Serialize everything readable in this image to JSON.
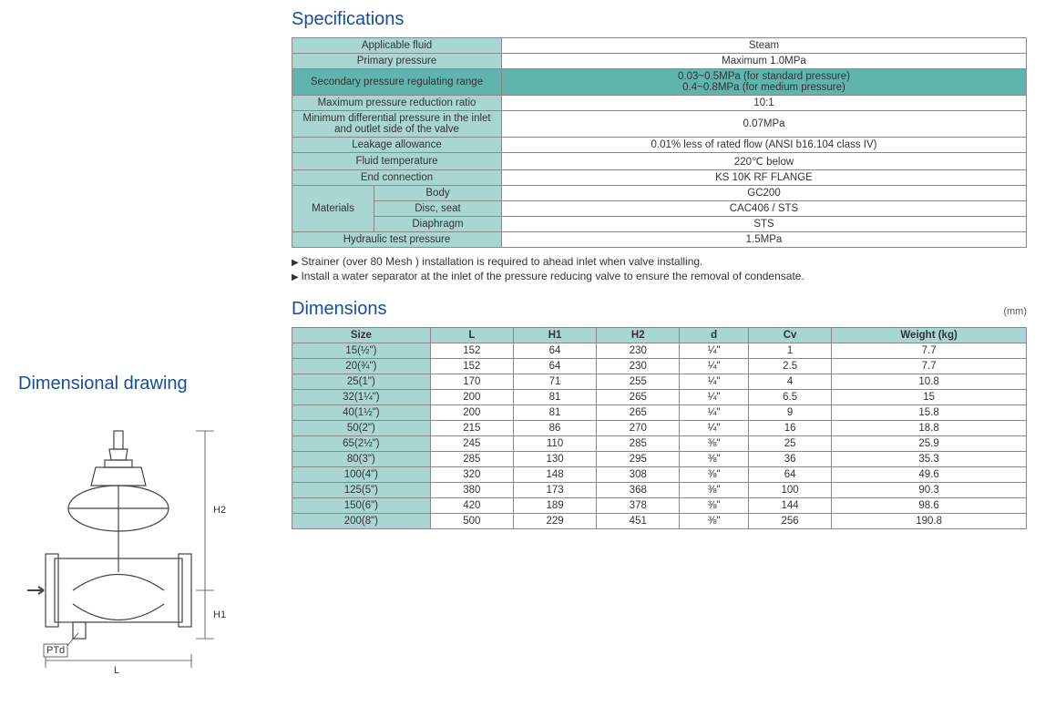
{
  "sections": {
    "specs_title": "Specifications",
    "dims_title": "Dimensions",
    "drawing_title": "Dimensional drawing",
    "dims_unit": "(mm)"
  },
  "colors": {
    "heading": "#1a4d99",
    "header_bg": "#a9d5d2",
    "highlight_bg": "#5fb5ae",
    "border": "#888888",
    "text": "#333333",
    "bg": "#ffffff"
  },
  "spec_table": {
    "rows": [
      {
        "label": "Applicable fluid",
        "value": "Steam",
        "highlight": false
      },
      {
        "label": "Primary pressure",
        "value": "Maximum 1.0MPa",
        "highlight": false
      },
      {
        "label": "Secondary pressure regulating range",
        "value": "0.03~0.5MPa (for standard pressure)\n0.4~0.8MPa (for medium pressure)",
        "highlight": true
      },
      {
        "label": "Maximum pressure reduction ratio",
        "value": "10:1",
        "highlight": false
      },
      {
        "label": "Minimum differential pressure in the inlet and outlet side of the valve",
        "value": "0.07MPa",
        "highlight": false
      },
      {
        "label": "Leakage allowance",
        "value": "0.01% less of rated flow (ANSI b16.104 class IV)",
        "highlight": false
      },
      {
        "label": "Fluid temperature",
        "value": "220℃ below",
        "highlight": false
      },
      {
        "label": "End connection",
        "value": "KS 10K RF FLANGE",
        "highlight": false
      }
    ],
    "materials": {
      "group_label": "Materials",
      "items": [
        {
          "label": "Body",
          "value": "GC200"
        },
        {
          "label": "Disc, seat",
          "value": "CAC406 / STS"
        },
        {
          "label": "Diaphragm",
          "value": "STS"
        }
      ]
    },
    "tail_row": {
      "label": "Hydraulic test pressure",
      "value": "1.5MPa"
    }
  },
  "notes": [
    "Strainer (over 80 Mesh ) installation is required to ahead inlet when valve installing.",
    "Install a water separator at the inlet of the pressure reducing valve to ensure the removal of condensate."
  ],
  "dim_table": {
    "columns": [
      "Size",
      "L",
      "H1",
      "H2",
      "d",
      "Cv",
      "Weight (kg)"
    ],
    "rows": [
      [
        "15(½\")",
        "152",
        "64",
        "230",
        "¼\"",
        "1",
        "7.7"
      ],
      [
        "20(¾\")",
        "152",
        "64",
        "230",
        "¼\"",
        "2.5",
        "7.7"
      ],
      [
        "25(1\")",
        "170",
        "71",
        "255",
        "¼\"",
        "4",
        "10.8"
      ],
      [
        "32(1¼\")",
        "200",
        "81",
        "265",
        "¼\"",
        "6.5",
        "15"
      ],
      [
        "40(1½\")",
        "200",
        "81",
        "265",
        "¼\"",
        "9",
        "15.8"
      ],
      [
        "50(2\")",
        "215",
        "86",
        "270",
        "¼\"",
        "16",
        "18.8"
      ],
      [
        "65(2½\")",
        "245",
        "110",
        "285",
        "⅜\"",
        "25",
        "25.9"
      ],
      [
        "80(3\")",
        "285",
        "130",
        "295",
        "⅜\"",
        "36",
        "35.3"
      ],
      [
        "100(4\")",
        "320",
        "148",
        "308",
        "⅜\"",
        "64",
        "49.6"
      ],
      [
        "125(5\")",
        "380",
        "173",
        "368",
        "⅜\"",
        "100",
        "90.3"
      ],
      [
        "150(6\")",
        "420",
        "189",
        "378",
        "⅜\"",
        "144",
        "98.6"
      ],
      [
        "200(8\")",
        "500",
        "229",
        "451",
        "⅜\"",
        "256",
        "190.8"
      ]
    ]
  },
  "drawing": {
    "labels": {
      "L": "L",
      "H1": "H1",
      "H2": "H2",
      "PTd": "PTd"
    },
    "stroke": "#444444",
    "stroke_width": 1.2
  }
}
